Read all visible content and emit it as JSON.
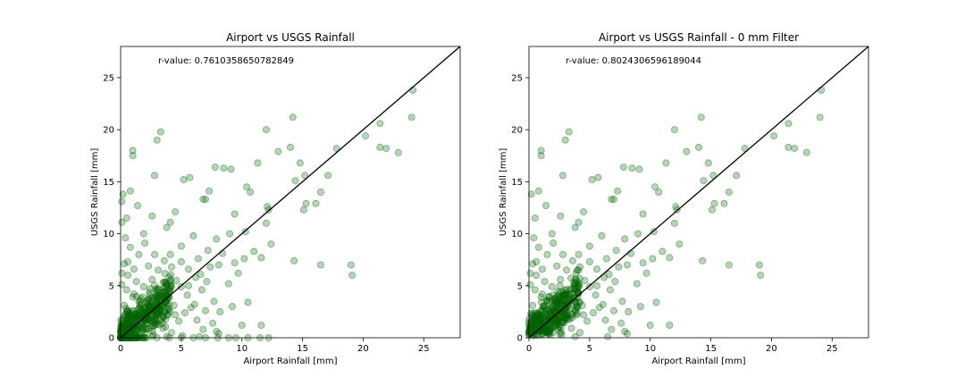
{
  "chart_data": [
    {
      "type": "scatter",
      "title": "Airport vs USGS Rainfall",
      "xlabel": "Airport Rainfall [mm]",
      "ylabel": "USGS Rainfall [mm]",
      "xlim": [
        0,
        28
      ],
      "ylim": [
        0,
        28
      ],
      "xticks": [
        0,
        5,
        10,
        15,
        20,
        25
      ],
      "yticks": [
        0,
        5,
        10,
        15,
        20,
        25
      ],
      "annotation": "r-value: 0.7610358650782849",
      "grid": false,
      "reference_line": [
        [
          0,
          0
        ],
        [
          28,
          28
        ]
      ],
      "marker_color": "#006400",
      "line_color": "#000000",
      "points": [
        [
          3.3,
          19.8
        ],
        [
          3.0,
          19.0
        ],
        [
          1.0,
          18.0
        ],
        [
          1.0,
          17.5
        ],
        [
          2.8,
          15.6
        ],
        [
          0.2,
          13.8
        ],
        [
          0.1,
          13.1
        ],
        [
          0.8,
          14.1
        ],
        [
          1.4,
          12.7
        ],
        [
          0.5,
          11.5
        ],
        [
          0.1,
          11.1
        ],
        [
          1.9,
          10.0
        ],
        [
          2.6,
          11.7
        ],
        [
          3.8,
          10.6
        ],
        [
          4.1,
          11.1
        ],
        [
          4.5,
          12.1
        ],
        [
          5.2,
          15.2
        ],
        [
          5.7,
          15.4
        ],
        [
          6.8,
          13.3
        ],
        [
          7.0,
          13.3
        ],
        [
          7.3,
          14.1
        ],
        [
          7.8,
          16.4
        ],
        [
          8.5,
          16.3
        ],
        [
          9.1,
          16.2
        ],
        [
          10.4,
          14.5
        ],
        [
          10.7,
          14.0
        ],
        [
          11.3,
          16.8
        ],
        [
          12.1,
          12.6
        ],
        [
          12.2,
          12.3
        ],
        [
          12.0,
          20.0
        ],
        [
          13.0,
          17.9
        ],
        [
          14.0,
          18.3
        ],
        [
          14.2,
          21.2
        ],
        [
          14.8,
          16.8
        ],
        [
          15.2,
          15.6
        ],
        [
          14.4,
          15.1
        ],
        [
          15.1,
          12.3
        ],
        [
          15.3,
          12.9
        ],
        [
          16.1,
          12.9
        ],
        [
          16.5,
          14.0
        ],
        [
          17.1,
          15.6
        ],
        [
          17.8,
          18.2
        ],
        [
          20.2,
          19.4
        ],
        [
          21.4,
          20.6
        ],
        [
          21.4,
          18.3
        ],
        [
          21.9,
          18.2
        ],
        [
          22.9,
          17.8
        ],
        [
          24.1,
          23.8
        ],
        [
          24.0,
          21.2
        ],
        [
          19.0,
          7.0
        ],
        [
          19.1,
          6.0
        ],
        [
          16.5,
          7.0
        ],
        [
          14.3,
          7.4
        ],
        [
          12.4,
          9.0
        ],
        [
          12.0,
          11.0
        ],
        [
          10.3,
          10.2
        ],
        [
          9.4,
          11.9
        ],
        [
          9.0,
          10.0
        ],
        [
          8.4,
          8.1
        ],
        [
          7.9,
          9.5
        ],
        [
          7.2,
          8.4
        ],
        [
          6.4,
          7.6
        ],
        [
          6.0,
          9.8
        ],
        [
          5.0,
          8.8
        ],
        [
          4.1,
          8.0
        ],
        [
          3.6,
          7.4
        ],
        [
          2.8,
          8.0
        ],
        [
          2.0,
          9.1
        ],
        [
          1.5,
          8.0
        ],
        [
          0.8,
          8.7
        ],
        [
          0.4,
          9.6
        ],
        [
          0.6,
          7.3
        ],
        [
          1.1,
          6.6
        ],
        [
          2.3,
          6.9
        ],
        [
          3.1,
          6.5
        ],
        [
          4.2,
          6.8
        ],
        [
          5.0,
          7.3
        ],
        [
          5.6,
          6.6
        ],
        [
          6.6,
          6.1
        ],
        [
          7.4,
          6.8
        ],
        [
          8.1,
          7.0
        ],
        [
          9.4,
          7.2
        ],
        [
          10.2,
          7.6
        ],
        [
          11.0,
          8.3
        ],
        [
          11.6,
          7.7
        ],
        [
          8.9,
          5.2
        ],
        [
          9.7,
          6.2
        ],
        [
          10.5,
          3.4
        ],
        [
          11.6,
          1.2
        ],
        [
          10.0,
          1.2
        ],
        [
          9.2,
          3.0
        ],
        [
          8.2,
          2.5
        ],
        [
          7.7,
          3.5
        ],
        [
          7.0,
          2.6
        ],
        [
          6.7,
          4.6
        ],
        [
          6.1,
          3.2
        ],
        [
          5.5,
          4.1
        ],
        [
          5.0,
          4.9
        ],
        [
          4.6,
          5.5
        ],
        [
          4.0,
          4.4
        ],
        [
          3.7,
          5.3
        ],
        [
          3.3,
          3.2
        ],
        [
          3.0,
          4.6
        ],
        [
          2.6,
          5.6
        ],
        [
          2.2,
          3.6
        ],
        [
          1.9,
          4.9
        ],
        [
          1.6,
          2.8
        ],
        [
          1.3,
          5.4
        ],
        [
          1.0,
          3.9
        ],
        [
          0.8,
          2.2
        ],
        [
          0.5,
          4.6
        ],
        [
          0.3,
          3.1
        ],
        [
          0.2,
          1.6
        ],
        [
          0.1,
          5.1
        ],
        [
          0.1,
          6.2
        ],
        [
          0.3,
          7.1
        ],
        [
          0.6,
          6.0
        ],
        [
          1.2,
          1.3
        ],
        [
          1.7,
          1.9
        ],
        [
          2.1,
          2.3
        ],
        [
          2.5,
          1.0
        ],
        [
          2.9,
          2.7
        ],
        [
          3.4,
          1.8
        ],
        [
          3.9,
          2.2
        ],
        [
          4.4,
          3.1
        ],
        [
          4.8,
          1.6
        ],
        [
          5.3,
          2.4
        ],
        [
          5.8,
          2.9
        ],
        [
          6.3,
          1.7
        ],
        [
          6.8,
          0.8
        ],
        [
          7.6,
          1.4
        ],
        [
          8.1,
          0.4
        ],
        [
          0.4,
          0.6
        ],
        [
          0.7,
          1.0
        ],
        [
          1.4,
          0.7
        ],
        [
          2.0,
          0.5
        ],
        [
          2.7,
          0.3
        ],
        [
          3.5,
          0.9
        ],
        [
          4.2,
          0.5
        ],
        [
          5.1,
          0.2
        ],
        [
          1.1,
          4.2
        ],
        [
          1.5,
          3.5
        ],
        [
          2.4,
          4.1
        ],
        [
          3.1,
          3.9
        ],
        [
          4.5,
          2.2
        ],
        [
          5.6,
          5.0
        ],
        [
          6.2,
          5.8
        ],
        [
          7.1,
          5.4
        ],
        [
          1.0,
          0.0
        ],
        [
          2.0,
          0.0
        ],
        [
          3.0,
          0.0
        ],
        [
          4.0,
          0.0
        ],
        [
          5.0,
          0.0
        ],
        [
          6.0,
          0.0
        ],
        [
          7.0,
          0.0
        ],
        [
          8.0,
          0.0
        ],
        [
          8.9,
          0.0
        ],
        [
          9.5,
          0.0
        ],
        [
          10.5,
          0.0
        ],
        [
          11.5,
          0.0
        ],
        [
          12.2,
          0.0
        ],
        [
          7.9,
          0.6
        ],
        [
          3.8,
          0.1
        ],
        [
          6.5,
          0.1
        ]
      ]
    },
    {
      "type": "scatter",
      "title": "Airport vs USGS Rainfall - 0 mm Filter",
      "xlabel": "Airport Rainfall [mm]",
      "ylabel": "USGS Rainfall [mm]",
      "xlim": [
        0,
        28
      ],
      "ylim": [
        0,
        28
      ],
      "xticks": [
        0,
        5,
        10,
        15,
        20,
        25
      ],
      "yticks": [
        0,
        5,
        10,
        15,
        20,
        25
      ],
      "annotation": "r-value: 0.8024306596189044",
      "grid": false,
      "reference_line": [
        [
          0,
          0
        ],
        [
          28,
          28
        ]
      ],
      "marker_color": "#006400",
      "line_color": "#000000",
      "points": [
        [
          3.3,
          19.8
        ],
        [
          3.0,
          19.0
        ],
        [
          1.0,
          18.0
        ],
        [
          1.0,
          17.5
        ],
        [
          2.8,
          15.6
        ],
        [
          0.2,
          13.8
        ],
        [
          0.8,
          14.1
        ],
        [
          1.4,
          12.7
        ],
        [
          0.5,
          11.5
        ],
        [
          1.9,
          10.0
        ],
        [
          2.6,
          11.7
        ],
        [
          3.8,
          10.6
        ],
        [
          4.1,
          11.1
        ],
        [
          4.5,
          12.1
        ],
        [
          5.2,
          15.2
        ],
        [
          5.7,
          15.4
        ],
        [
          6.8,
          13.3
        ],
        [
          7.0,
          13.3
        ],
        [
          7.3,
          14.1
        ],
        [
          7.8,
          16.4
        ],
        [
          8.5,
          16.3
        ],
        [
          9.1,
          16.2
        ],
        [
          10.4,
          14.5
        ],
        [
          10.7,
          14.0
        ],
        [
          11.3,
          16.8
        ],
        [
          12.1,
          12.6
        ],
        [
          12.2,
          12.3
        ],
        [
          12.0,
          20.0
        ],
        [
          13.0,
          17.9
        ],
        [
          14.0,
          18.3
        ],
        [
          14.2,
          21.2
        ],
        [
          14.8,
          16.8
        ],
        [
          15.2,
          15.6
        ],
        [
          14.4,
          15.1
        ],
        [
          15.1,
          12.3
        ],
        [
          15.3,
          12.9
        ],
        [
          16.1,
          12.9
        ],
        [
          16.5,
          14.0
        ],
        [
          17.1,
          15.6
        ],
        [
          17.8,
          18.2
        ],
        [
          20.2,
          19.4
        ],
        [
          21.4,
          20.6
        ],
        [
          21.4,
          18.3
        ],
        [
          21.9,
          18.2
        ],
        [
          22.9,
          17.8
        ],
        [
          24.1,
          23.8
        ],
        [
          24.0,
          21.2
        ],
        [
          19.0,
          7.0
        ],
        [
          19.1,
          6.0
        ],
        [
          16.5,
          7.0
        ],
        [
          14.3,
          7.4
        ],
        [
          12.4,
          9.0
        ],
        [
          12.0,
          11.0
        ],
        [
          10.3,
          10.2
        ],
        [
          9.4,
          11.9
        ],
        [
          9.0,
          10.0
        ],
        [
          8.4,
          8.1
        ],
        [
          7.9,
          9.5
        ],
        [
          7.2,
          8.4
        ],
        [
          6.4,
          7.6
        ],
        [
          6.0,
          9.8
        ],
        [
          5.0,
          8.8
        ],
        [
          4.1,
          8.0
        ],
        [
          3.6,
          7.4
        ],
        [
          2.8,
          8.0
        ],
        [
          2.0,
          9.1
        ],
        [
          1.5,
          8.0
        ],
        [
          0.8,
          8.7
        ],
        [
          0.4,
          9.6
        ],
        [
          0.6,
          7.3
        ],
        [
          1.1,
          6.6
        ],
        [
          2.3,
          6.9
        ],
        [
          3.1,
          6.5
        ],
        [
          4.2,
          6.8
        ],
        [
          5.0,
          7.3
        ],
        [
          5.6,
          6.6
        ],
        [
          6.6,
          6.1
        ],
        [
          7.4,
          6.8
        ],
        [
          8.1,
          7.0
        ],
        [
          9.4,
          7.2
        ],
        [
          10.2,
          7.6
        ],
        [
          11.0,
          8.3
        ],
        [
          11.6,
          7.7
        ],
        [
          8.9,
          5.2
        ],
        [
          9.7,
          6.2
        ],
        [
          10.5,
          3.4
        ],
        [
          11.6,
          1.2
        ],
        [
          10.0,
          1.2
        ],
        [
          9.2,
          3.0
        ],
        [
          8.2,
          2.5
        ],
        [
          7.7,
          3.5
        ],
        [
          7.0,
          2.6
        ],
        [
          6.7,
          4.6
        ],
        [
          6.1,
          3.2
        ],
        [
          5.5,
          4.1
        ],
        [
          5.0,
          4.9
        ],
        [
          4.6,
          5.5
        ],
        [
          4.0,
          4.4
        ],
        [
          3.7,
          5.3
        ],
        [
          3.3,
          3.2
        ],
        [
          3.0,
          4.6
        ],
        [
          2.6,
          5.6
        ],
        [
          2.2,
          3.6
        ],
        [
          1.9,
          4.9
        ],
        [
          1.6,
          2.8
        ],
        [
          1.3,
          5.4
        ],
        [
          1.0,
          3.9
        ],
        [
          0.8,
          2.2
        ],
        [
          0.5,
          4.6
        ],
        [
          0.3,
          3.1
        ],
        [
          0.2,
          1.6
        ],
        [
          0.1,
          5.1
        ],
        [
          0.1,
          6.2
        ],
        [
          0.3,
          7.1
        ],
        [
          0.6,
          6.0
        ],
        [
          1.2,
          1.3
        ],
        [
          1.7,
          1.9
        ],
        [
          2.1,
          2.3
        ],
        [
          2.5,
          1.0
        ],
        [
          2.9,
          2.7
        ],
        [
          3.4,
          1.8
        ],
        [
          3.9,
          2.2
        ],
        [
          4.4,
          3.1
        ],
        [
          4.8,
          1.6
        ],
        [
          5.3,
          2.4
        ],
        [
          5.8,
          2.9
        ],
        [
          6.3,
          1.7
        ],
        [
          6.8,
          0.8
        ],
        [
          7.6,
          1.4
        ],
        [
          8.1,
          0.4
        ],
        [
          0.4,
          0.6
        ],
        [
          0.7,
          1.0
        ],
        [
          1.4,
          0.7
        ],
        [
          2.0,
          0.5
        ],
        [
          2.7,
          0.3
        ],
        [
          3.5,
          0.9
        ],
        [
          4.2,
          0.5
        ],
        [
          1.1,
          4.2
        ],
        [
          1.5,
          3.5
        ],
        [
          2.4,
          4.1
        ],
        [
          3.1,
          3.9
        ],
        [
          4.5,
          2.2
        ],
        [
          5.6,
          5.0
        ],
        [
          6.2,
          5.8
        ],
        [
          7.1,
          5.4
        ],
        [
          3.8,
          0.1
        ],
        [
          6.5,
          0.1
        ],
        [
          7.9,
          0.6
        ]
      ]
    }
  ]
}
